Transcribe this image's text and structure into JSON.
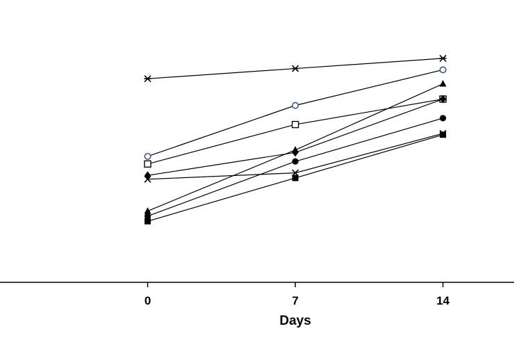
{
  "chart_data": {
    "type": "line",
    "title": "",
    "xlabel": "Days",
    "ylabel": "",
    "x": [
      0,
      7,
      14
    ],
    "xlim": [
      -7,
      17.7
    ],
    "ylim": [
      0,
      100
    ],
    "xticks": [
      "0",
      "7",
      "14"
    ],
    "grid": false,
    "legend": "none",
    "series": [
      {
        "marker": "asterisk",
        "color": "#000000",
        "values": [
          80,
          84,
          88
        ]
      },
      {
        "marker": "open-circle",
        "color": "#3a5a8c",
        "values": [
          49.5,
          69.5,
          83.5
        ]
      },
      {
        "marker": "filled-triangle",
        "color": "#000000",
        "values": [
          28,
          52,
          78
        ]
      },
      {
        "marker": "open-square",
        "color": "#000000",
        "values": [
          46.5,
          62,
          72
        ]
      },
      {
        "marker": "filled-diamond",
        "color": "#000000",
        "values": [
          42,
          51,
          72
        ]
      },
      {
        "marker": "filled-circle",
        "color": "#000000",
        "values": [
          26,
          47.5,
          64.5
        ]
      },
      {
        "marker": "x",
        "color": "#000000",
        "values": [
          40.5,
          43,
          58.5
        ]
      },
      {
        "marker": "filled-square",
        "color": "#000000",
        "values": [
          24,
          41,
          58
        ]
      }
    ]
  }
}
